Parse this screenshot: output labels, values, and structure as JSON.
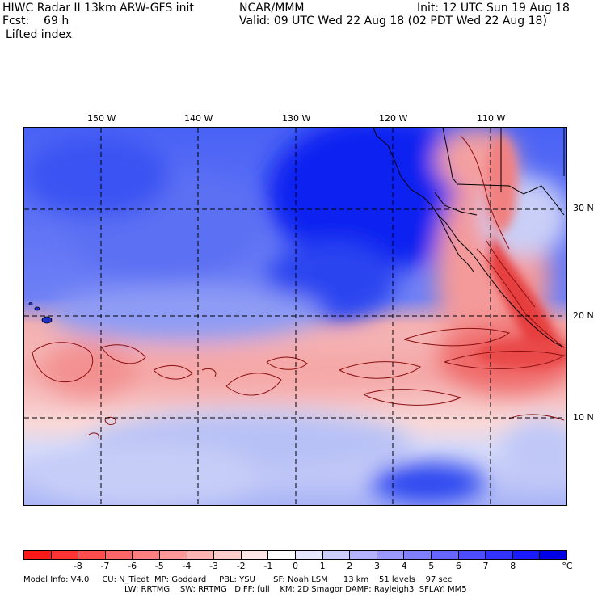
{
  "header": {
    "line1_left": "HIWC Radar II 13km ARW-GFS init",
    "line1_mid": "NCAR/MMM",
    "line1_right": "Init: 12 UTC Sun 19 Aug 18",
    "line2_left": "Fcst:    69 h",
    "line2_right": "Valid: 09 UTC Wed 22 Aug 18 (02 PDT Wed 22 Aug 18)",
    "field": "Lifted index"
  },
  "map": {
    "lon_labels": [
      "150 W",
      "140 W",
      "130 W",
      "120 W",
      "110 W"
    ],
    "lat_labels": [
      "30 N",
      "20 N",
      "10 N"
    ]
  },
  "colorbar": {
    "colors": [
      "#ff1a1a",
      "#ff3333",
      "#ff4d4d",
      "#ff6666",
      "#ff8080",
      "#ff9999",
      "#ffb3b3",
      "#ffcccc",
      "#ffe6e6",
      "#ffffff",
      "#e6e6ff",
      "#ccccff",
      "#b3b3ff",
      "#9999ff",
      "#8080ff",
      "#6666ff",
      "#4d4dff",
      "#3333ff",
      "#1a1aff",
      "#0000e6"
    ],
    "labels": [
      "-8",
      "-7",
      "-6",
      "-5",
      "-4",
      "-3",
      "-2",
      "-1",
      "0",
      "1",
      "2",
      "3",
      "4",
      "5",
      "6",
      "7",
      "8"
    ],
    "unit": "°C"
  },
  "footer": {
    "line1": "Model Info: V4.0     CU: N_Tiedt  MP: Goddard     PBL: YSU       SF: Noah LSM      13 km    51 levels    97 sec",
    "line2": "LW: RRTMG    SW: RRTMG   DIFF: full    KM: 2D Smagor DAMP: Rayleigh3  SFLAY: MM5"
  }
}
